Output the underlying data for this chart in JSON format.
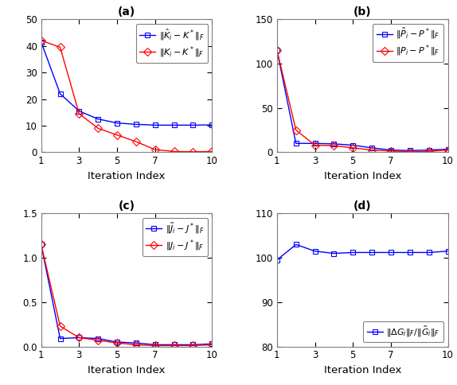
{
  "iterations": [
    1,
    2,
    3,
    4,
    5,
    6,
    7,
    8,
    9,
    10
  ],
  "panel_a": {
    "title": "(a)",
    "xlabel": "Iteration Index",
    "blue_label": "$\\|\\hat{K}_i - K^*\\|_F$",
    "red_label": "$\\|K_i - K^*\\|_F$",
    "blue_data": [
      41.5,
      22.0,
      15.5,
      12.5,
      11.0,
      10.5,
      10.2,
      10.2,
      10.2,
      10.3
    ],
    "red_data": [
      42.0,
      39.5,
      14.5,
      9.0,
      6.5,
      4.0,
      1.0,
      0.3,
      0.2,
      0.3
    ],
    "ylim": [
      0,
      50
    ],
    "yticks": [
      0,
      10,
      20,
      30,
      40,
      50
    ]
  },
  "panel_b": {
    "title": "(b)",
    "xlabel": "Iteration Index",
    "blue_label": "$\\|\\tilde{P}_i - P^*\\|_F$",
    "red_label": "$\\|P_i - P^*\\|_F$",
    "blue_data": [
      115.0,
      10.0,
      10.0,
      9.5,
      8.0,
      5.0,
      2.5,
      2.0,
      2.5,
      3.5
    ],
    "red_data": [
      115.0,
      25.0,
      8.0,
      7.5,
      5.0,
      2.5,
      1.5,
      0.5,
      1.0,
      2.5
    ],
    "ylim": [
      0,
      150
    ],
    "yticks": [
      0,
      50,
      100,
      150
    ]
  },
  "panel_c": {
    "title": "(c)",
    "xlabel": "Iteration Index",
    "blue_label": "$\\|\\tilde{J}_i - J^*\\|_F$",
    "red_label": "$\\|J_i - J^*\\|_F$",
    "blue_data": [
      1.15,
      0.09,
      0.1,
      0.09,
      0.05,
      0.04,
      0.02,
      0.02,
      0.02,
      0.03
    ],
    "red_data": [
      1.15,
      0.23,
      0.1,
      0.07,
      0.04,
      0.02,
      0.01,
      0.01,
      0.01,
      0.02
    ],
    "ylim": [
      0,
      1.5
    ],
    "yticks": [
      0,
      0.5,
      1.0,
      1.5
    ]
  },
  "panel_d": {
    "title": "(d)",
    "xlabel": "Iteration Index",
    "blue_label": "$\\|\\Delta G_i\\|_F/\\|\\tilde{G}_i\\|_F$",
    "blue_data": [
      99.5,
      103.0,
      101.5,
      101.0,
      101.2,
      101.2,
      101.2,
      101.2,
      101.2,
      101.5
    ],
    "ylim": [
      80,
      110
    ],
    "yticks": [
      80,
      90,
      100,
      110
    ]
  },
  "blue_color": "#0000FF",
  "red_color": "#FF0000",
  "markersize": 5,
  "linewidth": 1.0,
  "tick_fontsize": 8.5,
  "label_fontsize": 9.5,
  "title_fontsize": 10,
  "legend_fontsize": 8,
  "spine_color": "#808080",
  "xticks": [
    1,
    3,
    5,
    7,
    10
  ]
}
